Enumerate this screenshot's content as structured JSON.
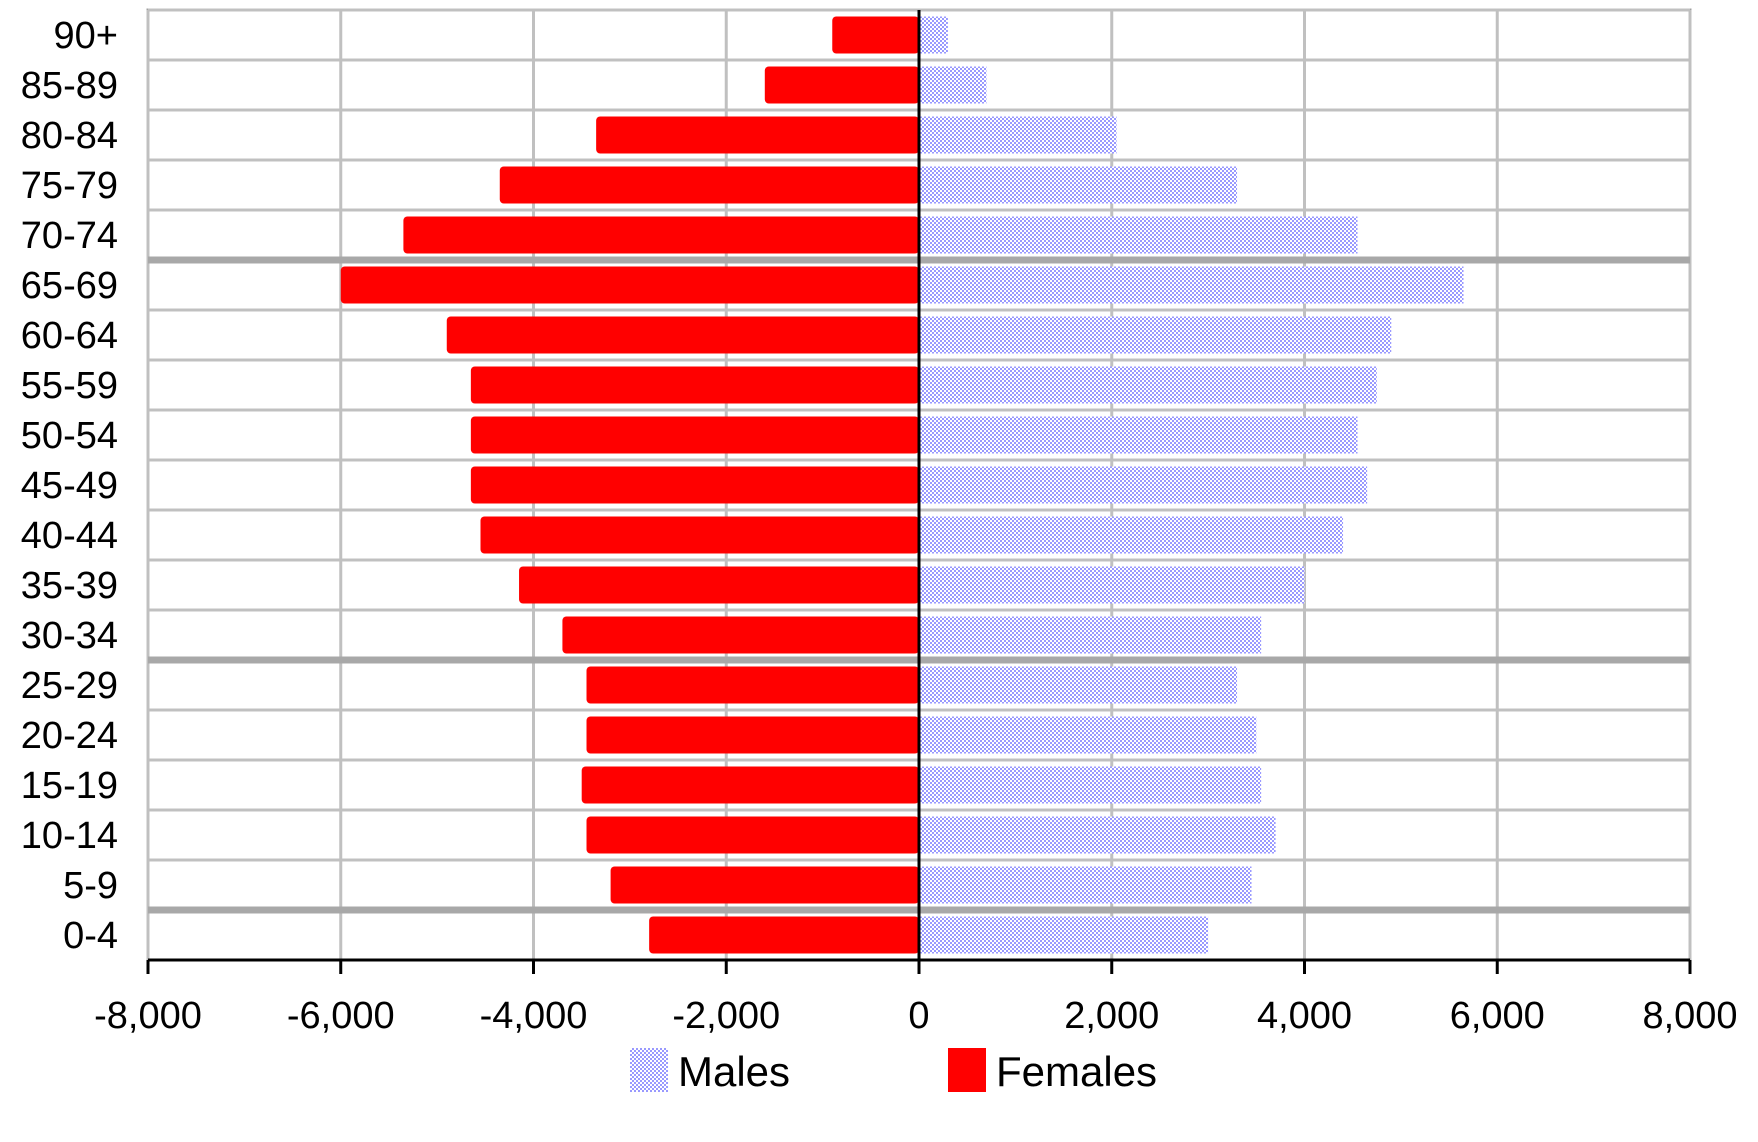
{
  "chart_data": {
    "type": "bar",
    "orientation": "horizontal",
    "stacking": "diverging",
    "title": "",
    "xlabel": "",
    "ylabel": "",
    "categories": [
      "0-4",
      "5-9",
      "10-14",
      "15-19",
      "20-24",
      "25-29",
      "30-34",
      "35-39",
      "40-44",
      "45-49",
      "50-54",
      "55-59",
      "60-64",
      "65-69",
      "70-74",
      "75-79",
      "80-84",
      "85-89",
      "90+"
    ],
    "series": [
      {
        "name": "Males",
        "color": "#9999ff",
        "pattern": "dotted",
        "values": [
          3000,
          3450,
          3700,
          3550,
          3500,
          3300,
          3550,
          4000,
          4400,
          4650,
          4550,
          4750,
          4900,
          5650,
          4550,
          3300,
          2050,
          700,
          300
        ]
      },
      {
        "name": "Females",
        "color": "#ff0000",
        "pattern": "solid",
        "values": [
          -2800,
          -3200,
          -3450,
          -3500,
          -3450,
          -3450,
          -3700,
          -4150,
          -4550,
          -4650,
          -4650,
          -4650,
          -4900,
          -6000,
          -5350,
          -4350,
          -3350,
          -1600,
          -900
        ]
      }
    ],
    "xlim": [
      -8000,
      8000
    ],
    "xticks": [
      -8000,
      -6000,
      -4000,
      -2000,
      0,
      2000,
      4000,
      6000,
      8000
    ],
    "xtick_labels": [
      "-8,000",
      "-6,000",
      "-4,000",
      "-2,000",
      "0",
      "2,000",
      "4,000",
      "6,000",
      "8,000"
    ],
    "grid": true,
    "legend": {
      "position": "bottom",
      "entries": [
        "Males",
        "Females"
      ]
    }
  }
}
